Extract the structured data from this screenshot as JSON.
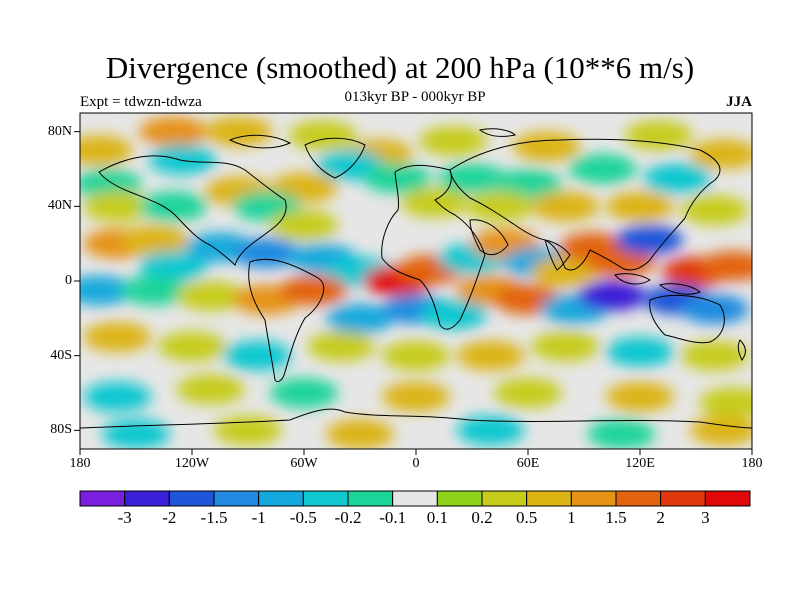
{
  "title": "Divergence (smoothed) at 200 hPa (10**6 m/s)",
  "subtitle": "013kyr BP - 000kyr BP",
  "experiment_label": "Expt = tdwzn-tdwza",
  "season_label": "JJA",
  "map": {
    "lat_labels": [
      "80N",
      "40N",
      "0",
      "40S",
      "80S"
    ],
    "lon_labels": [
      "180",
      "120W",
      "60W",
      "0",
      "60E",
      "120E",
      "180"
    ],
    "lat_range": [
      -90,
      90
    ],
    "lon_range": [
      -180,
      180
    ],
    "background_color": "#e6e6e6",
    "coastline_color": "#000000"
  },
  "colorbar": {
    "tick_labels": [
      "-3",
      "-2",
      "-1.5",
      "-1",
      "-0.5",
      "-0.2",
      "-0.1",
      "0.1",
      "0.2",
      "0.5",
      "1",
      "1.5",
      "2",
      "3"
    ],
    "colors": [
      "#7a1fe0",
      "#3a1fd8",
      "#1f55d8",
      "#1f8ae0",
      "#14a9dc",
      "#10c8d0",
      "#1cd49a",
      "#e6e6e6",
      "#8ed21c",
      "#c6cc1a",
      "#dcb414",
      "#e69214",
      "#e2640e",
      "#e0380c",
      "#e00808"
    ]
  },
  "field_blobs": [
    {
      "lon": -170,
      "lat": 70,
      "level": 10
    },
    {
      "lon": -130,
      "lat": 80,
      "level": 11
    },
    {
      "lon": -95,
      "lat": 80,
      "level": 10
    },
    {
      "lon": -50,
      "lat": 78,
      "level": 9
    },
    {
      "lon": -20,
      "lat": 68,
      "level": 10
    },
    {
      "lon": 20,
      "lat": 75,
      "level": 9
    },
    {
      "lon": 70,
      "lat": 72,
      "level": 10
    },
    {
      "lon": 130,
      "lat": 78,
      "level": 9
    },
    {
      "lon": 165,
      "lat": 68,
      "level": 10
    },
    {
      "lon": -165,
      "lat": 52,
      "level": 6
    },
    {
      "lon": -125,
      "lat": 65,
      "level": 5
    },
    {
      "lon": -95,
      "lat": 48,
      "level": 10
    },
    {
      "lon": -60,
      "lat": 50,
      "level": 10
    },
    {
      "lon": -35,
      "lat": 62,
      "level": 5
    },
    {
      "lon": -10,
      "lat": 55,
      "level": 6
    },
    {
      "lon": 30,
      "lat": 55,
      "level": 6
    },
    {
      "lon": 60,
      "lat": 52,
      "level": 6
    },
    {
      "lon": 100,
      "lat": 60,
      "level": 6
    },
    {
      "lon": 140,
      "lat": 55,
      "level": 5
    },
    {
      "lon": -160,
      "lat": 40,
      "level": 9
    },
    {
      "lon": -130,
      "lat": 40,
      "level": 6
    },
    {
      "lon": -80,
      "lat": 40,
      "level": 6
    },
    {
      "lon": -60,
      "lat": 30,
      "level": 9
    },
    {
      "lon": 10,
      "lat": 42,
      "level": 9
    },
    {
      "lon": 45,
      "lat": 40,
      "level": 9
    },
    {
      "lon": 80,
      "lat": 40,
      "level": 10
    },
    {
      "lon": 120,
      "lat": 40,
      "level": 10
    },
    {
      "lon": 160,
      "lat": 38,
      "level": 9
    },
    {
      "lon": -160,
      "lat": 20,
      "level": 11
    },
    {
      "lon": -140,
      "lat": 22,
      "level": 10
    },
    {
      "lon": -130,
      "lat": 8,
      "level": 5
    },
    {
      "lon": -105,
      "lat": 18,
      "level": 4
    },
    {
      "lon": -80,
      "lat": 15,
      "level": 3
    },
    {
      "lon": -50,
      "lat": 12,
      "level": 4
    },
    {
      "lon": -30,
      "lat": 5,
      "level": 5
    },
    {
      "lon": -10,
      "lat": 0,
      "level": 14
    },
    {
      "lon": 8,
      "lat": 6,
      "level": 12
    },
    {
      "lon": 30,
      "lat": 12,
      "level": 5
    },
    {
      "lon": 48,
      "lat": 20,
      "level": 11
    },
    {
      "lon": 65,
      "lat": 10,
      "level": 4
    },
    {
      "lon": 80,
      "lat": 5,
      "level": 10
    },
    {
      "lon": 95,
      "lat": 18,
      "level": 12
    },
    {
      "lon": 110,
      "lat": 10,
      "level": 12
    },
    {
      "lon": 125,
      "lat": 22,
      "level": 2
    },
    {
      "lon": 150,
      "lat": 5,
      "level": 13
    },
    {
      "lon": 170,
      "lat": 8,
      "level": 12
    },
    {
      "lon": -170,
      "lat": -5,
      "level": 4
    },
    {
      "lon": -140,
      "lat": -5,
      "level": 6
    },
    {
      "lon": -110,
      "lat": -8,
      "level": 9
    },
    {
      "lon": -80,
      "lat": -10,
      "level": 11
    },
    {
      "lon": -55,
      "lat": -5,
      "level": 12
    },
    {
      "lon": -30,
      "lat": -20,
      "level": 4
    },
    {
      "lon": 0,
      "lat": -15,
      "level": 3
    },
    {
      "lon": 20,
      "lat": -18,
      "level": 5
    },
    {
      "lon": 40,
      "lat": -5,
      "level": 11
    },
    {
      "lon": 60,
      "lat": -10,
      "level": 12
    },
    {
      "lon": 85,
      "lat": -15,
      "level": 4
    },
    {
      "lon": 105,
      "lat": -8,
      "level": 1
    },
    {
      "lon": 140,
      "lat": -10,
      "level": 2
    },
    {
      "lon": 160,
      "lat": -15,
      "level": 3
    },
    {
      "lon": -160,
      "lat": -30,
      "level": 10
    },
    {
      "lon": -120,
      "lat": -35,
      "level": 9
    },
    {
      "lon": -85,
      "lat": -40,
      "level": 5
    },
    {
      "lon": -40,
      "lat": -35,
      "level": 9
    },
    {
      "lon": 0,
      "lat": -40,
      "level": 9
    },
    {
      "lon": 40,
      "lat": -40,
      "level": 10
    },
    {
      "lon": 80,
      "lat": -35,
      "level": 9
    },
    {
      "lon": 120,
      "lat": -38,
      "level": 5
    },
    {
      "lon": 160,
      "lat": -40,
      "level": 9
    },
    {
      "lon": -160,
      "lat": -62,
      "level": 5
    },
    {
      "lon": -110,
      "lat": -58,
      "level": 9
    },
    {
      "lon": -60,
      "lat": -60,
      "level": 6
    },
    {
      "lon": 0,
      "lat": -62,
      "level": 10
    },
    {
      "lon": 60,
      "lat": -60,
      "level": 9
    },
    {
      "lon": 120,
      "lat": -62,
      "level": 10
    },
    {
      "lon": 170,
      "lat": -65,
      "level": 9
    },
    {
      "lon": -150,
      "lat": -82,
      "level": 5
    },
    {
      "lon": -90,
      "lat": -80,
      "level": 9
    },
    {
      "lon": -30,
      "lat": -82,
      "level": 10
    },
    {
      "lon": 40,
      "lat": -80,
      "level": 5
    },
    {
      "lon": 110,
      "lat": -82,
      "level": 6
    },
    {
      "lon": 165,
      "lat": -80,
      "level": 10
    }
  ]
}
